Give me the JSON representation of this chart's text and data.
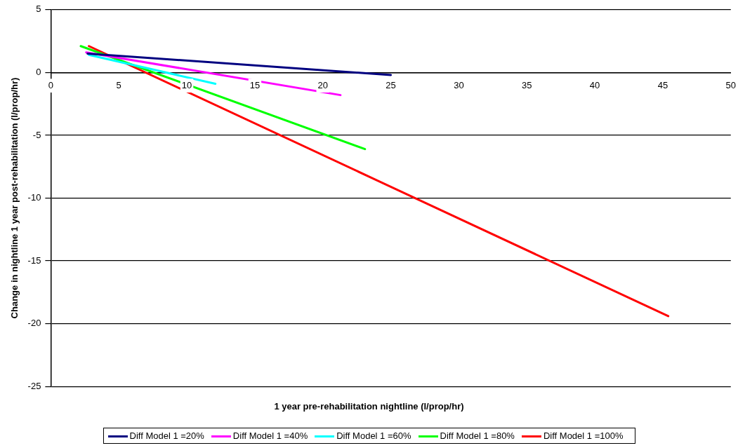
{
  "chart_data": {
    "type": "line",
    "xlabel": "1 year pre-rehabilitation nightline (l/prop/hr)",
    "ylabel": "Change in nightline 1 year post-rehabilitation (l/prop/hr)",
    "xlim": [
      0,
      50
    ],
    "xticks": [
      0,
      5,
      10,
      15,
      20,
      25,
      30,
      35,
      40,
      45,
      50
    ],
    "ylim": [
      -25,
      5
    ],
    "yticks": [
      -25,
      -20,
      -15,
      -10,
      -5,
      0,
      5
    ],
    "grid": "y",
    "legend": "bottom",
    "marker": "none",
    "line_style": "solid",
    "series": [
      {
        "name": "Diff Model 1 =20%",
        "color": "#000080",
        "x": [
          2.7,
          25
        ],
        "values": [
          1.5,
          -0.2
        ]
      },
      {
        "name": "Diff Model 1 =40%",
        "color": "#ff00ff",
        "x": [
          2.6,
          21.3
        ],
        "values": [
          1.6,
          -1.8
        ]
      },
      {
        "name": "Diff Model 1 =60%",
        "color": "#00ffff",
        "x": [
          2.8,
          12.1
        ],
        "values": [
          1.4,
          -0.9
        ]
      },
      {
        "name": "Diff Model 1 =80%",
        "color": "#00ff00",
        "x": [
          2.2,
          23.1
        ],
        "values": [
          2.1,
          -6.1
        ]
      },
      {
        "name": "Diff Model 1 =100%",
        "color": "#ff0000",
        "x": [
          2.8,
          45.4
        ],
        "values": [
          2.1,
          -19.4
        ]
      }
    ]
  }
}
